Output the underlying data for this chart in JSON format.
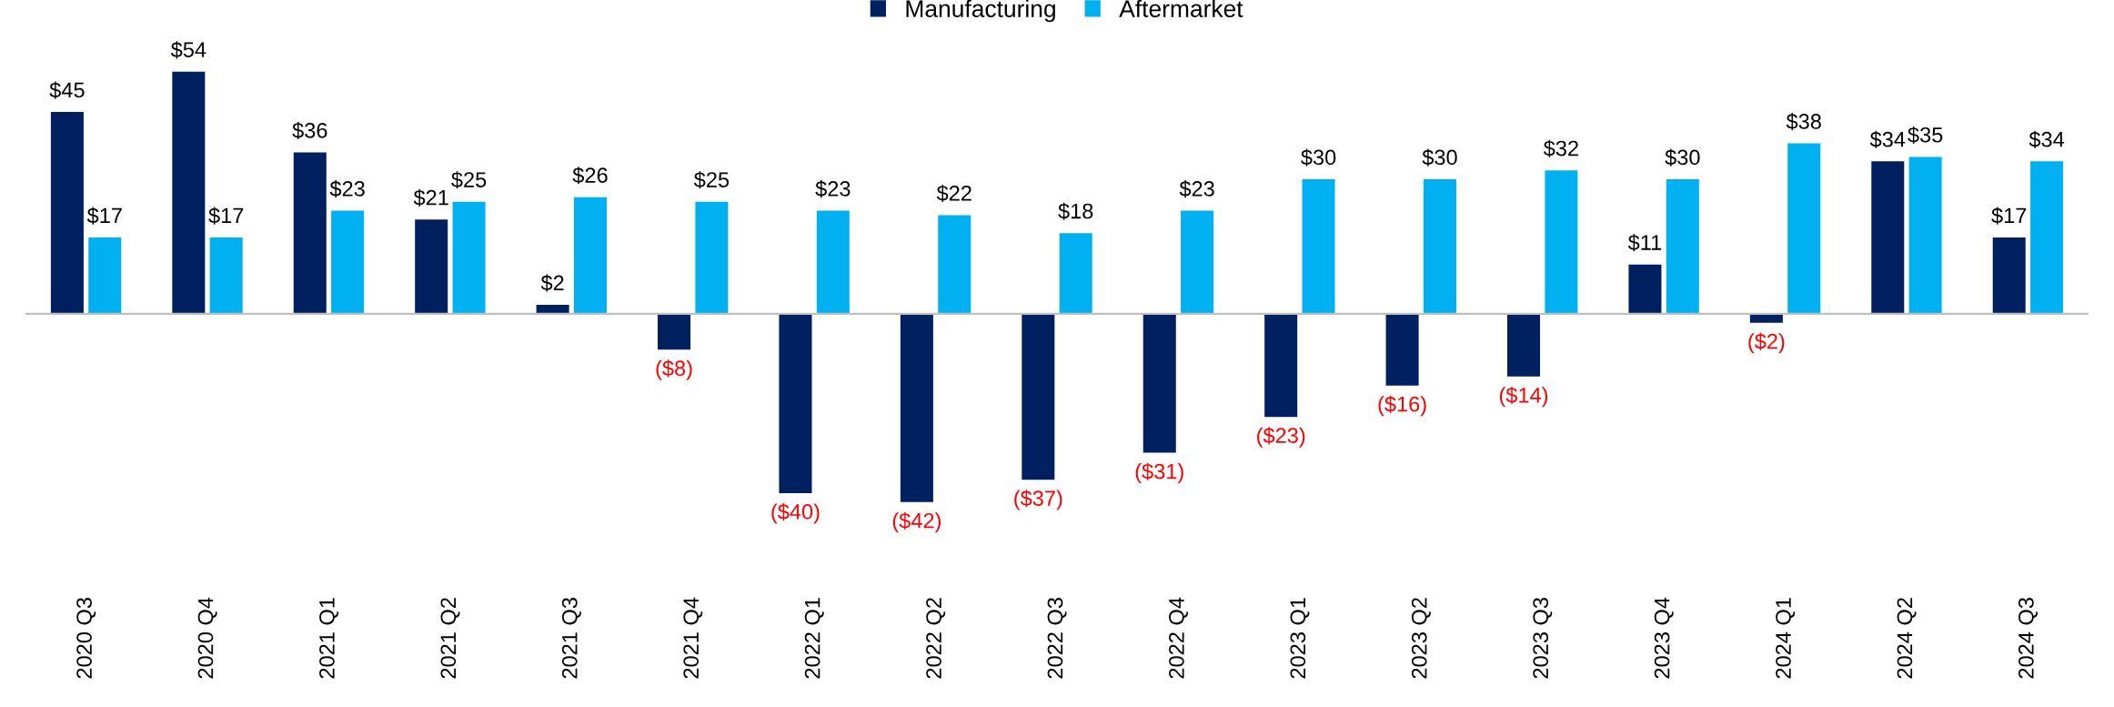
{
  "chart_data": {
    "type": "bar",
    "categories": [
      "2020 Q3",
      "2020 Q4",
      "2021 Q1",
      "2021 Q2",
      "2021 Q3",
      "2021 Q4",
      "2022 Q1",
      "2022 Q2",
      "2022 Q3",
      "2022 Q4",
      "2023 Q1",
      "2023 Q2",
      "2023 Q3",
      "2023 Q4",
      "2024 Q1",
      "2024 Q2",
      "2024 Q3"
    ],
    "series": [
      {
        "name": "Manufacturing",
        "color": "#002060",
        "values": [
          45,
          54,
          36,
          21,
          2,
          -8,
          -40,
          -42,
          -37,
          -31,
          -23,
          -16,
          -14,
          11,
          -2,
          34,
          17
        ],
        "value_labels": [
          "$45",
          "$54",
          "$36",
          "$21",
          "$2",
          "($8)",
          "($40)",
          "($42)",
          "($37)",
          "($31)",
          "($23)",
          "($16)",
          "($14)",
          "$11",
          "($2)",
          "$34",
          "$17"
        ]
      },
      {
        "name": "Aftermarket",
        "color": "#00b0f0",
        "values": [
          17,
          17,
          23,
          25,
          26,
          25,
          23,
          22,
          18,
          23,
          30,
          30,
          32,
          30,
          38,
          35,
          34
        ],
        "value_labels": [
          "$17",
          "$17",
          "$23",
          "$25",
          "$26",
          "$25",
          "$23",
          "$22",
          "$18",
          "$23",
          "$30",
          "$30",
          "$32",
          "$30",
          "$38",
          "$35",
          "$34"
        ]
      }
    ],
    "legend": "top",
    "grid": false
  }
}
